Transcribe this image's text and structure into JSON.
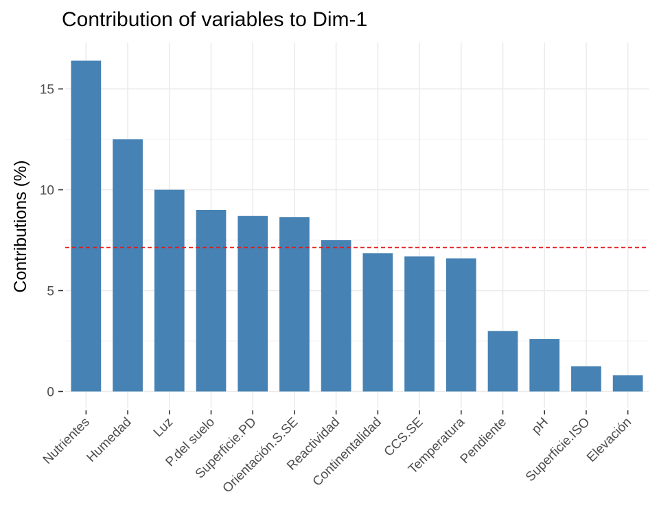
{
  "chart_data": {
    "type": "bar",
    "title": "Contribution of variables to Dim-1",
    "xlabel": "",
    "ylabel": "Contributions (%)",
    "categories": [
      "Nutrientes",
      "Humedad",
      "Luz",
      "P.del suelo",
      "Superficie.PD",
      "Orientación.S.SE",
      "Reactividad",
      "Continentalidad",
      "CCS.SE",
      "Temperatura",
      "Pendiente",
      "pH",
      "Superficie.ISO",
      "Elevación"
    ],
    "values": [
      16.4,
      12.5,
      10.0,
      9.0,
      8.7,
      8.65,
      7.5,
      6.85,
      6.7,
      6.6,
      3.0,
      2.6,
      1.25,
      0.8
    ],
    "ylim": [
      -0.8,
      17.3
    ],
    "yticks": [
      0,
      5,
      10,
      15
    ],
    "reference_line": {
      "value": 7.14,
      "style": "dashed",
      "color": "#e41a1c"
    },
    "bar_color": "#4682b4",
    "grid": true,
    "legend": "none"
  }
}
